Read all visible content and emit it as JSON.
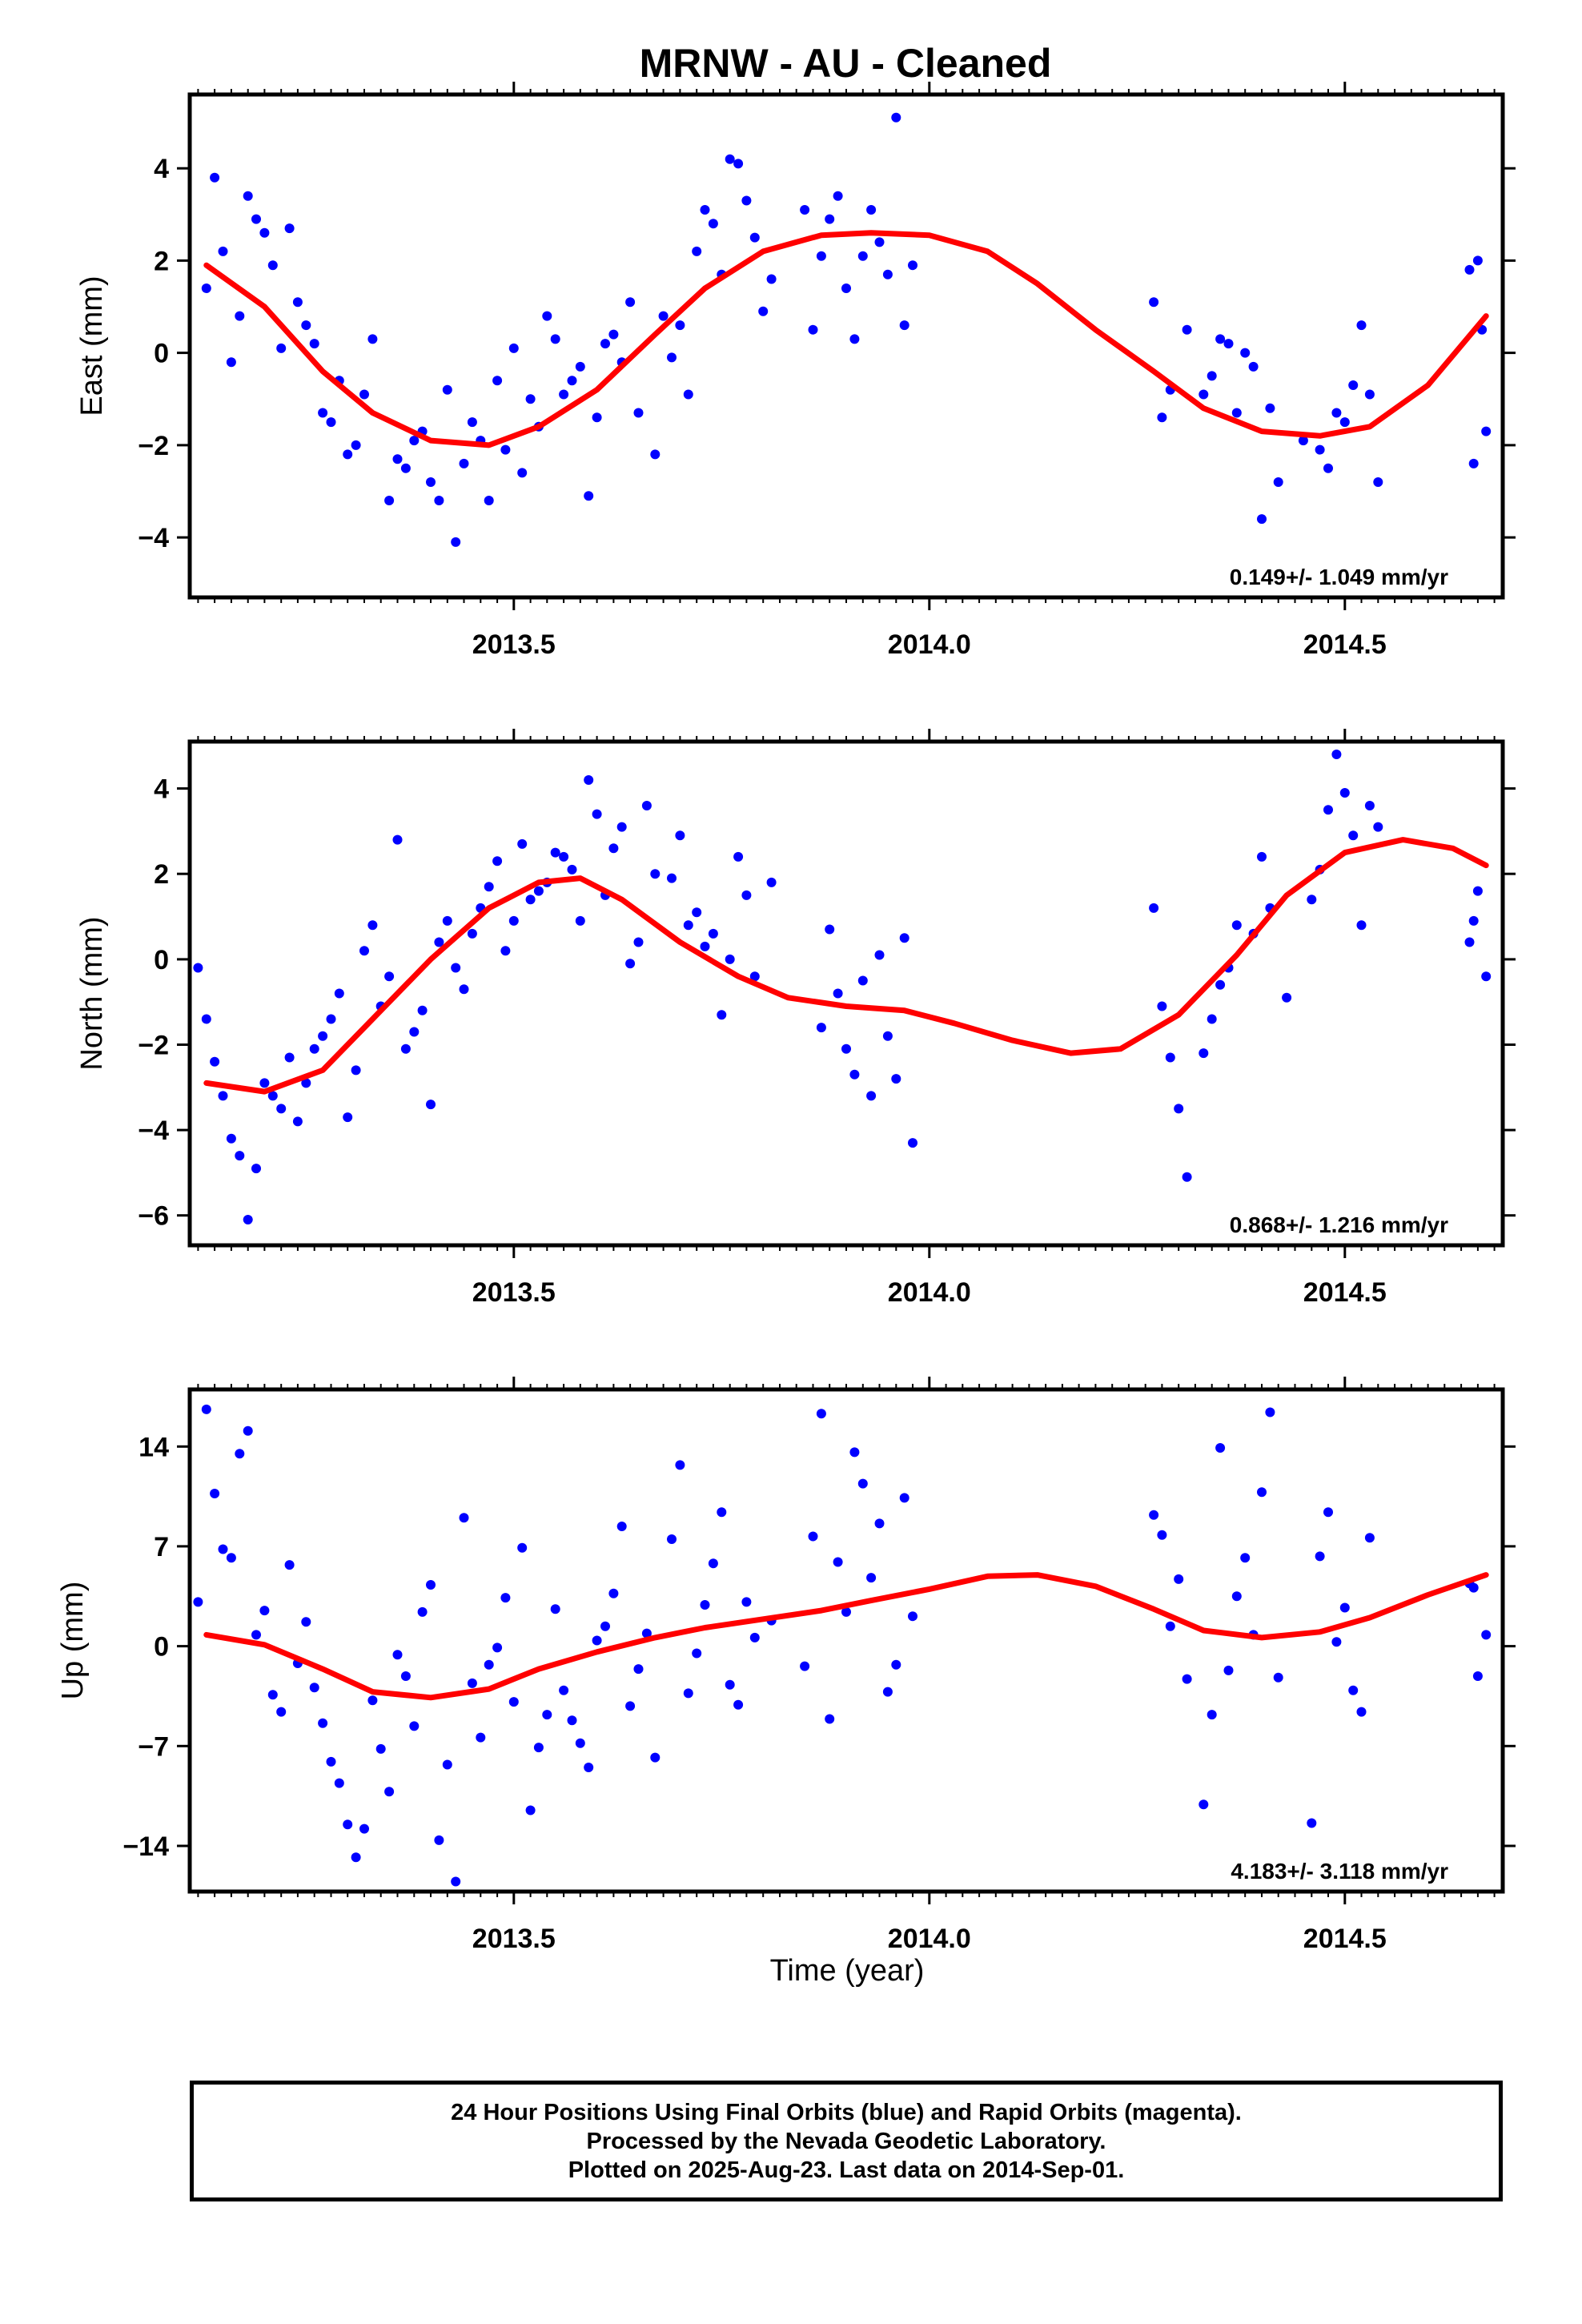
{
  "title": "MRNW  - AU - Cleaned",
  "x_axis_label": "Time (year)",
  "footer": {
    "line1": "24 Hour Positions Using Final Orbits (blue) and Rapid Orbits (magenta).",
    "line2": "Processed by the Nevada Geodetic Laboratory.",
    "line3": "Plotted on 2025-Aug-23. Last data on 2014-Sep-01."
  },
  "colors": {
    "points": "#0000ff",
    "fit": "#ff0000",
    "frame": "#000000"
  },
  "chart_data": [
    {
      "type": "scatter",
      "ylabel": "East (mm)",
      "rate_label": "0.149+/- 1.049 mm/yr",
      "xlim": [
        2013.11,
        2014.69
      ],
      "ylim": [
        -5.3,
        5.6
      ],
      "xticks": [
        2013.5,
        2014.0,
        2014.5
      ],
      "xtick_labels": [
        "2013.5",
        "2014.0",
        "2014.5"
      ],
      "yticks": [
        4,
        2,
        0,
        -2,
        -4
      ],
      "ytick_labels": [
        "4",
        "2",
        "0",
        "−2",
        "−4"
      ],
      "fit": {
        "x": [
          2013.13,
          2013.2,
          2013.27,
          2013.33,
          2013.4,
          2013.47,
          2013.53,
          2013.6,
          2013.67,
          2013.73,
          2013.8,
          2013.87,
          2013.93,
          2014.0,
          2014.07,
          2014.13,
          2014.2,
          2014.27,
          2014.33,
          2014.4,
          2014.47,
          2014.53,
          2014.6,
          2014.67
        ],
        "y": [
          1.9,
          1.0,
          -0.4,
          -1.3,
          -1.9,
          -2.0,
          -1.6,
          -0.8,
          0.4,
          1.4,
          2.2,
          2.55,
          2.6,
          2.55,
          2.2,
          1.5,
          0.5,
          -0.4,
          -1.2,
          -1.7,
          -1.8,
          -1.6,
          -0.7,
          0.8
        ]
      },
      "points": {
        "x": [
          2013.13,
          2013.15,
          2013.17,
          2013.19,
          2013.21,
          2013.23,
          2013.14,
          2013.16,
          2013.18,
          2013.2,
          2013.22,
          2013.24,
          2013.25,
          2013.27,
          2013.29,
          2013.31,
          2013.33,
          2013.26,
          2013.28,
          2013.3,
          2013.32,
          2013.35,
          2013.37,
          2013.39,
          2013.41,
          2013.43,
          2013.36,
          2013.38,
          2013.4,
          2013.42,
          2013.44,
          2013.45,
          2013.47,
          2013.49,
          2013.51,
          2013.46,
          2013.48,
          2013.5,
          2013.52,
          2013.53,
          2013.55,
          2013.57,
          2013.59,
          2013.54,
          2013.56,
          2013.58,
          2013.6,
          2013.61,
          2013.63,
          2013.65,
          2013.62,
          2013.64,
          2013.67,
          2013.69,
          2013.71,
          2013.68,
          2013.7,
          2013.72,
          2013.73,
          2013.75,
          2013.77,
          2013.74,
          2013.76,
          2013.78,
          2013.79,
          2013.81,
          2013.8,
          2013.85,
          2013.87,
          2013.89,
          2013.91,
          2013.86,
          2013.88,
          2013.9,
          2013.92,
          2013.93,
          2013.95,
          2013.97,
          2013.94,
          2013.96,
          2013.98,
          2014.27,
          2014.29,
          2014.31,
          2014.28,
          2014.33,
          2014.35,
          2014.37,
          2014.34,
          2014.36,
          2014.38,
          2014.39,
          2014.41,
          2014.42,
          2014.4,
          2014.45,
          2014.47,
          2014.49,
          2014.48,
          2014.5,
          2014.51,
          2014.53,
          2014.52,
          2014.54,
          2014.65,
          2014.66,
          2014.67,
          2014.655,
          2014.665
        ],
        "y": [
          1.4,
          2.2,
          0.8,
          2.9,
          1.9,
          2.7,
          3.8,
          -0.2,
          3.4,
          2.6,
          0.1,
          1.1,
          0.6,
          -1.3,
          -0.6,
          -2.0,
          0.3,
          0.2,
          -1.5,
          -2.2,
          -0.9,
          -3.2,
          -2.5,
          -1.7,
          -3.2,
          -4.1,
          -2.3,
          -1.9,
          -2.8,
          -0.8,
          -2.4,
          -1.5,
          -3.2,
          -2.1,
          -2.6,
          -1.9,
          -0.6,
          0.1,
          -1.0,
          -1.6,
          0.3,
          -0.6,
          -3.1,
          0.8,
          -0.9,
          -0.3,
          -1.4,
          0.2,
          -0.2,
          -1.3,
          0.4,
          1.1,
          -2.2,
          -0.1,
          -0.9,
          0.8,
          0.6,
          2.2,
          3.1,
          1.7,
          4.1,
          2.8,
          4.2,
          3.3,
          2.5,
          1.6,
          0.9,
          3.1,
          2.1,
          3.4,
          0.3,
          0.5,
          2.9,
          1.4,
          2.1,
          3.1,
          1.7,
          0.6,
          2.4,
          5.1,
          1.9,
          1.1,
          -0.8,
          0.5,
          -1.4,
          -0.9,
          0.3,
          -1.3,
          -0.5,
          0.2,
          0.0,
          -0.3,
          -1.2,
          -2.8,
          -3.6,
          -1.9,
          -2.1,
          -1.3,
          -2.5,
          -1.5,
          -0.7,
          -0.9,
          0.6,
          -2.8,
          1.8,
          2.0,
          -1.7,
          -2.4,
          0.5
        ]
      }
    },
    {
      "type": "scatter",
      "ylabel": "North (mm)",
      "rate_label": "0.868+/- 1.216 mm/yr",
      "xlim": [
        2013.11,
        2014.69
      ],
      "ylim": [
        -6.7,
        5.1
      ],
      "xticks": [
        2013.5,
        2014.0,
        2014.5
      ],
      "xtick_labels": [
        "2013.5",
        "2014.0",
        "2014.5"
      ],
      "yticks": [
        4,
        2,
        0,
        -2,
        -4,
        -6
      ],
      "ytick_labels": [
        "4",
        "2",
        "0",
        "−2",
        "−4",
        "−6"
      ],
      "fit": {
        "x": [
          2013.13,
          2013.2,
          2013.27,
          2013.33,
          2013.4,
          2013.47,
          2013.53,
          2013.58,
          2013.63,
          2013.7,
          2013.77,
          2013.83,
          2013.9,
          2013.97,
          2014.03,
          2014.1,
          2014.17,
          2014.23,
          2014.3,
          2014.37,
          2014.43,
          2014.5,
          2014.57,
          2014.63,
          2014.67
        ],
        "y": [
          -2.9,
          -3.1,
          -2.6,
          -1.4,
          0.0,
          1.2,
          1.8,
          1.9,
          1.4,
          0.4,
          -0.4,
          -0.9,
          -1.1,
          -1.2,
          -1.5,
          -1.9,
          -2.2,
          -2.1,
          -1.3,
          0.1,
          1.5,
          2.5,
          2.8,
          2.6,
          2.2
        ]
      },
      "points": {
        "x": [
          2013.12,
          2013.14,
          2013.16,
          2013.18,
          2013.2,
          2013.22,
          2013.13,
          2013.15,
          2013.17,
          2013.19,
          2013.21,
          2013.23,
          2013.24,
          2013.26,
          2013.28,
          2013.3,
          2013.25,
          2013.27,
          2013.29,
          2013.31,
          2013.33,
          2013.35,
          2013.37,
          2013.32,
          2013.34,
          2013.36,
          2013.38,
          2013.4,
          2013.42,
          2013.44,
          2013.39,
          2013.41,
          2013.43,
          2013.45,
          2013.47,
          2013.49,
          2013.46,
          2013.48,
          2013.5,
          2013.52,
          2013.51,
          2013.53,
          2013.55,
          2013.57,
          2013.54,
          2013.56,
          2013.58,
          2013.6,
          2013.62,
          2013.59,
          2013.61,
          2013.63,
          2013.65,
          2013.67,
          2013.64,
          2013.66,
          2013.69,
          2013.71,
          2013.73,
          2013.7,
          2013.72,
          2013.74,
          2013.76,
          2013.78,
          2013.75,
          2013.77,
          2013.79,
          2013.81,
          2013.87,
          2013.89,
          2013.91,
          2013.88,
          2013.9,
          2013.92,
          2013.93,
          2013.95,
          2013.97,
          2013.94,
          2013.96,
          2013.98,
          2014.27,
          2014.29,
          2014.31,
          2014.28,
          2014.3,
          2014.33,
          2014.35,
          2014.37,
          2014.34,
          2014.36,
          2014.39,
          2014.41,
          2014.43,
          2014.4,
          2014.46,
          2014.48,
          2014.5,
          2014.47,
          2014.49,
          2014.51,
          2014.53,
          2014.52,
          2014.54,
          2014.65,
          2014.66,
          2014.67,
          2014.655
        ],
        "y": [
          -0.2,
          -2.4,
          -4.2,
          -6.1,
          -2.9,
          -3.5,
          -1.4,
          -3.2,
          -4.6,
          -4.9,
          -3.2,
          -2.3,
          -3.8,
          -2.1,
          -1.4,
          -3.7,
          -2.9,
          -1.8,
          -0.8,
          -2.6,
          0.8,
          -0.4,
          -2.1,
          0.2,
          -1.1,
          2.8,
          -1.7,
          -3.4,
          0.9,
          -0.7,
          -1.2,
          0.4,
          -0.2,
          0.6,
          1.7,
          0.2,
          1.2,
          2.3,
          0.9,
          1.4,
          2.7,
          1.6,
          2.5,
          2.1,
          1.8,
          2.4,
          0.9,
          3.4,
          2.6,
          4.2,
          1.5,
          3.1,
          0.4,
          2.0,
          -0.1,
          3.6,
          1.9,
          0.8,
          0.3,
          2.9,
          1.1,
          0.6,
          0.0,
          1.5,
          -1.3,
          2.4,
          -0.4,
          1.8,
          -1.6,
          -0.8,
          -2.7,
          0.7,
          -2.1,
          -0.5,
          -3.2,
          -1.8,
          0.5,
          0.1,
          -2.8,
          -4.3,
          1.2,
          -2.3,
          -5.1,
          -1.1,
          -3.5,
          -2.2,
          -0.6,
          0.8,
          -1.4,
          -0.2,
          0.6,
          1.2,
          -0.9,
          2.4,
          1.4,
          3.5,
          3.9,
          2.1,
          4.8,
          2.9,
          3.6,
          0.8,
          3.1,
          0.4,
          1.6,
          -0.4,
          0.9
        ]
      }
    },
    {
      "type": "scatter",
      "ylabel": "Up (mm)",
      "rate_label": "4.183+/- 3.118 mm/yr",
      "xlabel": "Time (year)",
      "xlim": [
        2013.11,
        2014.69
      ],
      "ylim": [
        -17.2,
        18.0
      ],
      "xticks": [
        2013.5,
        2014.0,
        2014.5
      ],
      "xtick_labels": [
        "2013.5",
        "2014.0",
        "2014.5"
      ],
      "yticks": [
        14,
        7,
        0,
        -7,
        -14
      ],
      "ytick_labels": [
        "14",
        "7",
        "0",
        "−7",
        "−14"
      ],
      "fit": {
        "x": [
          2013.13,
          2013.2,
          2013.27,
          2013.33,
          2013.4,
          2013.47,
          2013.53,
          2013.6,
          2013.67,
          2013.73,
          2013.8,
          2013.87,
          2013.93,
          2014.0,
          2014.07,
          2014.13,
          2014.2,
          2014.27,
          2014.33,
          2014.4,
          2014.47,
          2014.53,
          2014.6,
          2014.67
        ],
        "y": [
          0.8,
          0.1,
          -1.6,
          -3.2,
          -3.6,
          -3.0,
          -1.6,
          -0.4,
          0.6,
          1.3,
          1.9,
          2.5,
          3.2,
          4.0,
          4.9,
          5.0,
          4.2,
          2.6,
          1.1,
          0.6,
          1.0,
          2.0,
          3.6,
          5.0
        ]
      },
      "points": {
        "x": [
          2013.12,
          2013.14,
          2013.16,
          2013.18,
          2013.2,
          2013.22,
          2013.13,
          2013.15,
          2013.17,
          2013.19,
          2013.21,
          2013.23,
          2013.24,
          2013.26,
          2013.28,
          2013.3,
          2013.25,
          2013.27,
          2013.29,
          2013.31,
          2013.33,
          2013.35,
          2013.37,
          2013.32,
          2013.34,
          2013.36,
          2013.39,
          2013.41,
          2013.43,
          2013.38,
          2013.4,
          2013.42,
          2013.45,
          2013.47,
          2013.49,
          2013.44,
          2013.46,
          2013.48,
          2013.5,
          2013.52,
          2013.54,
          2013.51,
          2013.53,
          2013.55,
          2013.57,
          2013.59,
          2013.61,
          2013.56,
          2013.58,
          2013.6,
          2013.63,
          2013.65,
          2013.67,
          2013.62,
          2013.64,
          2013.66,
          2013.69,
          2013.71,
          2013.73,
          2013.7,
          2013.72,
          2013.74,
          2013.76,
          2013.78,
          2013.75,
          2013.77,
          2013.79,
          2013.81,
          2013.85,
          2013.87,
          2013.89,
          2013.86,
          2013.88,
          2013.9,
          2013.92,
          2013.94,
          2013.96,
          2013.91,
          2013.93,
          2013.95,
          2013.97,
          2013.98,
          2014.27,
          2014.29,
          2014.31,
          2014.28,
          2014.3,
          2014.33,
          2014.35,
          2014.37,
          2014.34,
          2014.36,
          2014.38,
          2014.4,
          2014.42,
          2014.39,
          2014.41,
          2014.46,
          2014.48,
          2014.5,
          2014.47,
          2014.49,
          2014.51,
          2014.53,
          2014.52,
          2014.65,
          2014.66,
          2014.67,
          2014.655
        ],
        "y": [
          3.1,
          10.7,
          6.2,
          15.1,
          2.5,
          -4.6,
          16.6,
          6.8,
          13.5,
          0.8,
          -3.4,
          5.7,
          -1.2,
          -2.9,
          -8.1,
          -12.5,
          1.7,
          -5.4,
          -9.6,
          -14.8,
          -3.8,
          -10.2,
          -2.1,
          -12.8,
          -7.2,
          -0.6,
          2.4,
          -13.6,
          -16.5,
          -5.6,
          4.3,
          -8.3,
          -2.6,
          -1.3,
          3.4,
          9.0,
          -6.4,
          -0.1,
          -3.9,
          -11.5,
          -4.8,
          6.9,
          -7.1,
          2.6,
          -5.2,
          -8.5,
          1.4,
          -3.1,
          -6.8,
          0.4,
          8.4,
          -1.6,
          -7.8,
          3.7,
          -4.2,
          0.9,
          7.5,
          -3.3,
          2.9,
          12.7,
          -0.5,
          5.8,
          -2.7,
          3.1,
          9.4,
          -4.1,
          0.6,
          1.8,
          -1.4,
          16.3,
          5.9,
          7.7,
          -5.1,
          2.4,
          11.4,
          8.6,
          -1.3,
          13.6,
          4.8,
          -3.2,
          10.4,
          2.1,
          9.2,
          1.4,
          -2.3,
          7.8,
          4.7,
          -11.1,
          13.9,
          3.5,
          -4.8,
          -1.7,
          6.2,
          10.8,
          -2.2,
          0.8,
          16.4,
          -12.4,
          9.4,
          2.7,
          6.3,
          0.3,
          -3.1,
          7.6,
          -4.6,
          4.4,
          -2.1,
          0.8,
          4.1
        ]
      }
    }
  ]
}
